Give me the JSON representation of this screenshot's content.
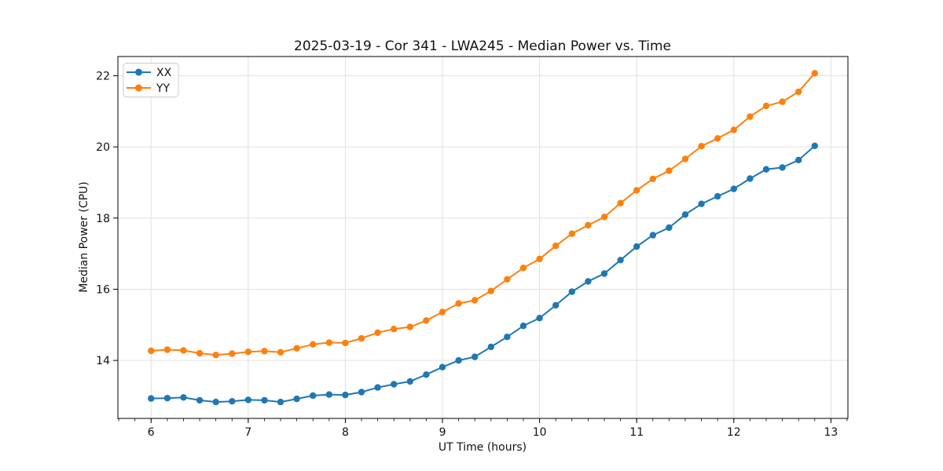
{
  "figure": {
    "background": "#ffffff",
    "frame_color": "#000000",
    "grid_color": "#e0e0e0",
    "text_color": "#111111",
    "legend_border_color": "#cccccc"
  },
  "chart_data": {
    "type": "line",
    "title": "2025-03-19 - Cor 341 - LWA245 - Median Power vs. Time",
    "xlabel": "UT Time (hours)",
    "ylabel": "Median Power (CPU)",
    "xlim": [
      5.658,
      13.175
    ],
    "ylim": [
      12.37,
      22.54
    ],
    "x_major_ticks": [
      6,
      7,
      8,
      9,
      10,
      11,
      12,
      13
    ],
    "y_major_ticks": [
      14,
      16,
      18,
      20,
      22
    ],
    "x_minor_step": 0.166667,
    "grid": true,
    "legend_position": "upper-left",
    "marker": "circle",
    "x": [
      6.0,
      6.1667,
      6.3333,
      6.5,
      6.6667,
      6.8333,
      7.0,
      7.1667,
      7.3333,
      7.5,
      7.6667,
      7.8333,
      8.0,
      8.1667,
      8.3333,
      8.5,
      8.6667,
      8.8333,
      9.0,
      9.1667,
      9.3333,
      9.5,
      9.6667,
      9.8333,
      10.0,
      10.1667,
      10.3333,
      10.5,
      10.6667,
      10.8333,
      11.0,
      11.1667,
      11.3333,
      11.5,
      11.6667,
      11.8333,
      12.0,
      12.1667,
      12.3333,
      12.5,
      12.6667,
      12.8333
    ],
    "series": [
      {
        "name": "XX",
        "color": "#1f77b4",
        "values": [
          12.93,
          12.94,
          12.96,
          12.88,
          12.83,
          12.85,
          12.89,
          12.88,
          12.83,
          12.92,
          13.01,
          13.04,
          13.03,
          13.11,
          13.24,
          13.33,
          13.41,
          13.6,
          13.81,
          14.0,
          14.1,
          14.38,
          14.66,
          14.97,
          15.19,
          15.55,
          15.93,
          16.22,
          16.44,
          16.82,
          17.2,
          17.52,
          17.73,
          18.1,
          18.4,
          18.61,
          18.82,
          19.11,
          19.37,
          19.42,
          19.63,
          20.03
        ]
      },
      {
        "name": "YY",
        "color": "#ff7f0e",
        "values": [
          14.27,
          14.3,
          14.28,
          14.2,
          14.15,
          14.19,
          14.24,
          14.26,
          14.23,
          14.34,
          14.45,
          14.5,
          14.49,
          14.62,
          14.78,
          14.88,
          14.94,
          15.12,
          15.36,
          15.6,
          15.69,
          15.95,
          16.28,
          16.6,
          16.85,
          17.22,
          17.56,
          17.8,
          18.03,
          18.42,
          18.78,
          19.1,
          19.33,
          19.66,
          20.02,
          20.24,
          20.48,
          20.85,
          21.15,
          21.27,
          21.55,
          22.07
        ]
      }
    ]
  }
}
